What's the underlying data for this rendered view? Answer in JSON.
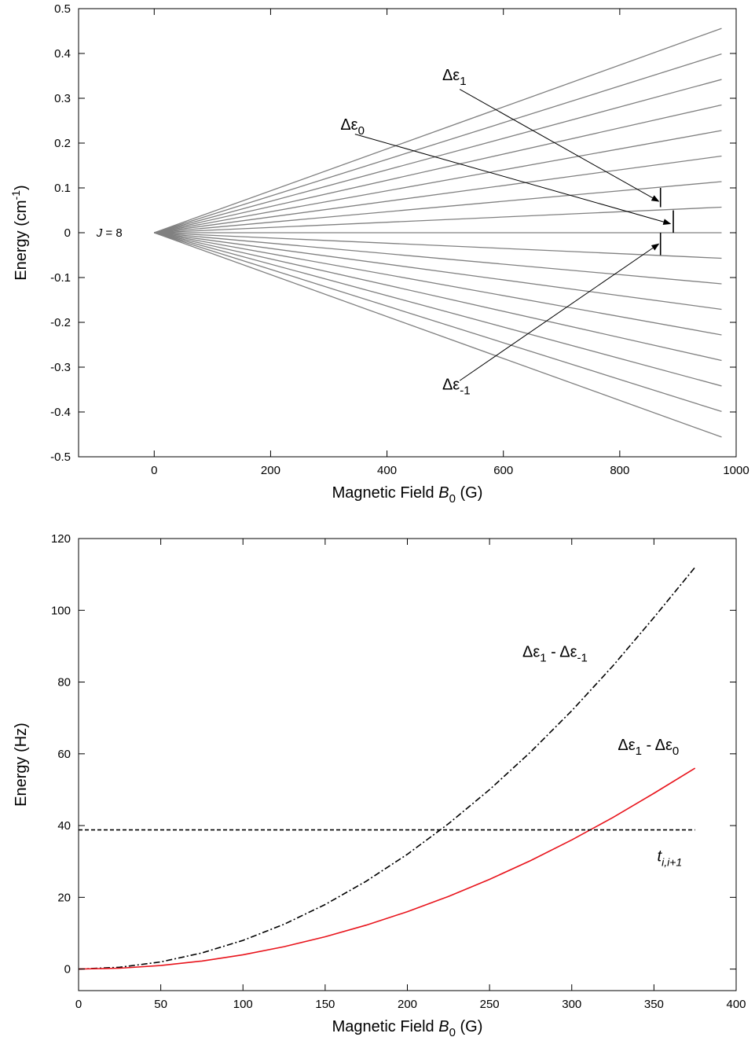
{
  "chart_data": [
    {
      "type": "line",
      "xlabel": "Magnetic Field B0 (G)",
      "xlabel_parts": {
        "pre": "Magnetic Field ",
        "var": "B",
        "sub": "0",
        "post": " (G)"
      },
      "ylabel": "Energy (cm-1)",
      "ylabel_parts": {
        "pre": "Energy (cm",
        "sup": "-1",
        "post": ")"
      },
      "xlim": [
        -130,
        1000
      ],
      "ylim": [
        -0.5,
        0.5
      ],
      "xticks": [
        0,
        200,
        400,
        600,
        800,
        1000
      ],
      "yticks": [
        -0.5,
        -0.4,
        -0.3,
        -0.2,
        -0.1,
        0,
        0.1,
        0.2,
        0.3,
        0.4,
        0.5
      ],
      "ytick_labels": [
        "-0.5",
        "-0.4",
        "-0.3",
        "-0.2",
        "-0.1",
        "0",
        "0.1",
        "0.2",
        "0.3",
        "0.4",
        "0.5"
      ],
      "line_color": "#808080",
      "fan": {
        "x_start": 0,
        "x_end": 975,
        "end_values": [
          0.456,
          0.399,
          0.342,
          0.285,
          0.228,
          0.171,
          0.114,
          0.057,
          0,
          -0.057,
          -0.114,
          -0.171,
          -0.228,
          -0.285,
          -0.342,
          -0.399,
          -0.456
        ]
      },
      "level_label": {
        "var": "J",
        "text": " = 8",
        "x": -75,
        "y": 0
      },
      "gap_markers": [
        {
          "x": 870,
          "y1": 0.057,
          "y2": 0.1
        },
        {
          "x": 892,
          "y1": 0,
          "y2": 0.05
        },
        {
          "x": 870,
          "y1": -0.05,
          "y2": 0
        }
      ],
      "annotations": [
        {
          "label": "Δε",
          "sub": "1",
          "text_x": 495,
          "text_y": 0.34,
          "from": [
            525,
            0.32
          ],
          "to": [
            867,
            0.07
          ]
        },
        {
          "label": "Δε",
          "sub": "0",
          "text_x": 320,
          "text_y": 0.23,
          "from": [
            345,
            0.22
          ],
          "to": [
            887,
            0.02
          ]
        },
        {
          "label": "Δε",
          "sub": "-1",
          "text_x": 495,
          "text_y": -0.35,
          "from": [
            525,
            -0.33
          ],
          "to": [
            867,
            -0.025
          ]
        }
      ]
    },
    {
      "type": "line",
      "xlabel": "Magnetic Field B0 (G)",
      "xlabel_parts": {
        "pre": "Magnetic Field ",
        "var": "B",
        "sub": "0",
        "post": " (G)"
      },
      "ylabel": "Energy (Hz)",
      "xlim": [
        0,
        400
      ],
      "ylim": [
        -6,
        120
      ],
      "xticks": [
        0,
        50,
        100,
        150,
        200,
        250,
        300,
        350,
        400
      ],
      "yticks": [
        0,
        20,
        40,
        60,
        80,
        100,
        120
      ],
      "series": [
        {
          "label_parts": {
            "a": "Δε",
            "a_sub": "1",
            "mid": " - ",
            "b": "Δε",
            "b_sub": "-1"
          },
          "color": "#000000",
          "style": "dashdot",
          "x": [
            0,
            25,
            50,
            75,
            100,
            125,
            150,
            175,
            200,
            225,
            250,
            275,
            300,
            325,
            350,
            375
          ],
          "y": [
            0,
            0.5,
            2,
            4.5,
            8,
            12.5,
            18,
            24.5,
            32,
            40.5,
            50,
            60.5,
            72,
            84.5,
            98,
            112
          ]
        },
        {
          "label_parts": {
            "a": "Δε",
            "a_sub": "1",
            "mid": " - ",
            "b": "Δε",
            "b_sub": "0"
          },
          "color": "#e8141c",
          "style": "solid",
          "x": [
            0,
            25,
            50,
            75,
            100,
            125,
            150,
            175,
            200,
            225,
            250,
            275,
            300,
            325,
            350,
            375
          ],
          "y": [
            0,
            0.25,
            1,
            2.25,
            4,
            6.25,
            9,
            12.25,
            16,
            20.25,
            25,
            30.25,
            36,
            42.25,
            49,
            56
          ]
        },
        {
          "label_parts": {
            "var": "t",
            "sub": "i,i+1"
          },
          "color": "#000000",
          "style": "dashed",
          "x": [
            0,
            375
          ],
          "y": [
            38.8,
            38.8
          ]
        }
      ]
    }
  ]
}
